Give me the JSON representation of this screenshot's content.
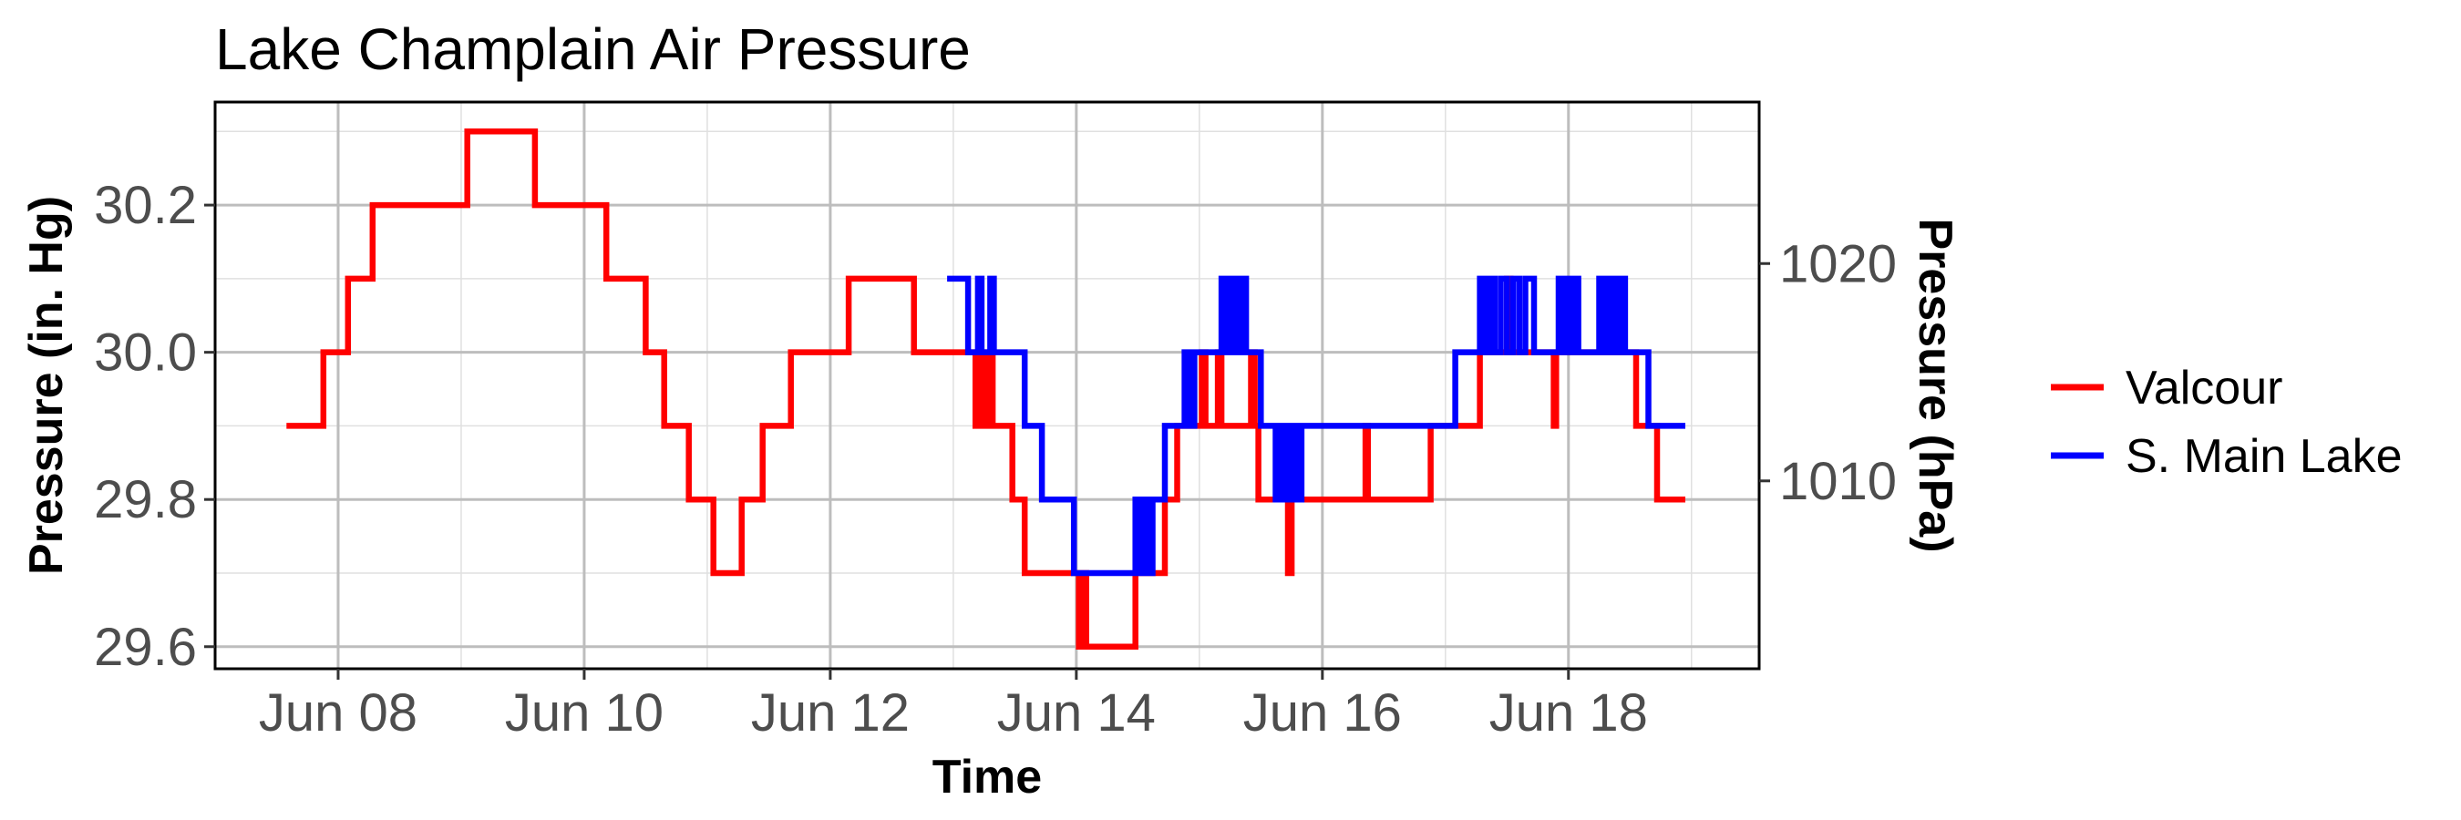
{
  "chart_data": {
    "type": "line",
    "title": "Lake Champlain Air Pressure",
    "xlabel": "Time",
    "ylabel": "Pressure (in. Hg)",
    "ylabel_secondary": "Pressure (hPa)",
    "x_ticks": [
      {
        "value": "Jun 08",
        "day": 8
      },
      {
        "value": "Jun 10",
        "day": 10
      },
      {
        "value": "Jun 12",
        "day": 12
      },
      {
        "value": "Jun 14",
        "day": 14
      },
      {
        "value": "Jun 16",
        "day": 16
      },
      {
        "value": "Jun 18",
        "day": 18
      }
    ],
    "xlim": [
      7.0,
      19.55
    ],
    "ylim": [
      29.57,
      30.34
    ],
    "y_ticks": [
      29.6,
      29.8,
      30.0,
      30.2
    ],
    "y_tick_labels": [
      "29.6",
      "29.8",
      "30.0",
      "30.2"
    ],
    "y2_ticks": [
      1010,
      1020
    ],
    "y2_tick_labels": [
      "1010",
      "1020"
    ],
    "grid": true,
    "legend_position": "right",
    "series": [
      {
        "name": "Valcour",
        "color": "#FF0000",
        "points": [
          [
            7.58,
            29.9
          ],
          [
            7.88,
            29.9
          ],
          [
            7.88,
            30.0
          ],
          [
            8.08,
            30.0
          ],
          [
            8.08,
            30.1
          ],
          [
            8.28,
            30.1
          ],
          [
            8.28,
            30.2
          ],
          [
            9.05,
            30.2
          ],
          [
            9.05,
            30.3
          ],
          [
            9.6,
            30.3
          ],
          [
            9.6,
            30.2
          ],
          [
            10.18,
            30.2
          ],
          [
            10.18,
            30.1
          ],
          [
            10.5,
            30.1
          ],
          [
            10.5,
            30.0
          ],
          [
            10.65,
            30.0
          ],
          [
            10.65,
            29.9
          ],
          [
            10.85,
            29.9
          ],
          [
            10.85,
            29.8
          ],
          [
            11.05,
            29.8
          ],
          [
            11.05,
            29.7
          ],
          [
            11.28,
            29.7
          ],
          [
            11.28,
            29.8
          ],
          [
            11.45,
            29.8
          ],
          [
            11.45,
            29.9
          ],
          [
            11.68,
            29.9
          ],
          [
            11.68,
            30.0
          ],
          [
            12.15,
            30.0
          ],
          [
            12.15,
            30.1
          ],
          [
            12.68,
            30.1
          ],
          [
            12.68,
            30.0
          ],
          [
            13.18,
            30.0
          ],
          [
            13.18,
            29.9
          ],
          [
            13.22,
            29.9
          ],
          [
            13.22,
            30.0
          ],
          [
            13.25,
            30.0
          ],
          [
            13.25,
            29.9
          ],
          [
            13.28,
            29.9
          ],
          [
            13.28,
            30.0
          ],
          [
            13.32,
            30.0
          ],
          [
            13.32,
            29.9
          ],
          [
            13.48,
            29.9
          ],
          [
            13.48,
            29.8
          ],
          [
            13.58,
            29.8
          ],
          [
            13.58,
            29.7
          ],
          [
            14.02,
            29.7
          ],
          [
            14.02,
            29.6
          ],
          [
            14.05,
            29.6
          ],
          [
            14.05,
            29.7
          ],
          [
            14.08,
            29.7
          ],
          [
            14.08,
            29.6
          ],
          [
            14.48,
            29.6
          ],
          [
            14.48,
            29.7
          ],
          [
            14.52,
            29.7
          ],
          [
            14.52,
            29.8
          ],
          [
            14.55,
            29.8
          ],
          [
            14.55,
            29.7
          ],
          [
            14.72,
            29.7
          ],
          [
            14.72,
            29.8
          ],
          [
            14.82,
            29.8
          ],
          [
            14.82,
            29.9
          ],
          [
            15.02,
            29.9
          ],
          [
            15.02,
            30.0
          ],
          [
            15.05,
            30.0
          ],
          [
            15.05,
            29.9
          ],
          [
            15.15,
            29.9
          ],
          [
            15.15,
            30.0
          ],
          [
            15.18,
            30.0
          ],
          [
            15.18,
            29.9
          ],
          [
            15.42,
            29.9
          ],
          [
            15.42,
            30.0
          ],
          [
            15.45,
            30.0
          ],
          [
            15.45,
            29.9
          ],
          [
            15.48,
            29.9
          ],
          [
            15.48,
            29.8
          ],
          [
            15.72,
            29.8
          ],
          [
            15.72,
            29.7
          ],
          [
            15.75,
            29.7
          ],
          [
            15.75,
            29.8
          ],
          [
            16.35,
            29.8
          ],
          [
            16.35,
            29.9
          ],
          [
            16.37,
            29.9
          ],
          [
            16.37,
            29.8
          ],
          [
            16.88,
            29.8
          ],
          [
            16.88,
            29.9
          ],
          [
            17.28,
            29.9
          ],
          [
            17.28,
            30.0
          ],
          [
            17.5,
            30.0
          ],
          [
            17.5,
            30.1
          ],
          [
            17.53,
            30.1
          ],
          [
            17.53,
            30.0
          ],
          [
            17.88,
            30.0
          ],
          [
            17.88,
            29.9
          ],
          [
            17.9,
            29.9
          ],
          [
            17.9,
            30.0
          ],
          [
            18.55,
            30.0
          ],
          [
            18.55,
            29.9
          ],
          [
            18.72,
            29.9
          ],
          [
            18.72,
            29.8
          ],
          [
            18.95,
            29.8
          ]
        ]
      },
      {
        "name": "S. Main Lake",
        "color": "#0000FF",
        "points": [
          [
            12.95,
            30.1
          ],
          [
            13.12,
            30.1
          ],
          [
            13.12,
            30.0
          ],
          [
            13.2,
            30.0
          ],
          [
            13.2,
            30.1
          ],
          [
            13.23,
            30.1
          ],
          [
            13.23,
            30.0
          ],
          [
            13.3,
            30.0
          ],
          [
            13.3,
            30.1
          ],
          [
            13.33,
            30.1
          ],
          [
            13.33,
            30.0
          ],
          [
            13.58,
            30.0
          ],
          [
            13.58,
            29.9
          ],
          [
            13.72,
            29.9
          ],
          [
            13.72,
            29.8
          ],
          [
            13.98,
            29.8
          ],
          [
            13.98,
            29.7
          ],
          [
            14.48,
            29.7
          ],
          [
            14.48,
            29.8
          ],
          [
            14.52,
            29.8
          ],
          [
            14.52,
            29.7
          ],
          [
            14.55,
            29.7
          ],
          [
            14.55,
            29.8
          ],
          [
            14.58,
            29.8
          ],
          [
            14.58,
            29.7
          ],
          [
            14.62,
            29.7
          ],
          [
            14.62,
            29.8
          ],
          [
            14.72,
            29.8
          ],
          [
            14.72,
            29.9
          ],
          [
            14.88,
            29.9
          ],
          [
            14.88,
            30.0
          ],
          [
            14.92,
            30.0
          ],
          [
            14.92,
            29.9
          ],
          [
            14.96,
            29.9
          ],
          [
            14.96,
            30.0
          ],
          [
            15.18,
            30.0
          ],
          [
            15.18,
            30.1
          ],
          [
            15.22,
            30.1
          ],
          [
            15.22,
            30.0
          ],
          [
            15.26,
            30.0
          ],
          [
            15.26,
            30.1
          ],
          [
            15.3,
            30.1
          ],
          [
            15.3,
            30.0
          ],
          [
            15.34,
            30.0
          ],
          [
            15.34,
            30.1
          ],
          [
            15.38,
            30.1
          ],
          [
            15.38,
            30.0
          ],
          [
            15.5,
            30.0
          ],
          [
            15.5,
            29.9
          ],
          [
            15.62,
            29.9
          ],
          [
            15.62,
            29.8
          ],
          [
            15.65,
            29.8
          ],
          [
            15.65,
            29.9
          ],
          [
            15.68,
            29.9
          ],
          [
            15.68,
            29.8
          ],
          [
            15.71,
            29.8
          ],
          [
            15.71,
            29.9
          ],
          [
            15.74,
            29.9
          ],
          [
            15.74,
            29.8
          ],
          [
            15.77,
            29.8
          ],
          [
            15.77,
            29.9
          ],
          [
            15.8,
            29.9
          ],
          [
            15.8,
            29.8
          ],
          [
            15.83,
            29.8
          ],
          [
            15.83,
            29.9
          ],
          [
            17.08,
            29.9
          ],
          [
            17.08,
            30.0
          ],
          [
            17.28,
            30.0
          ],
          [
            17.28,
            30.1
          ],
          [
            17.32,
            30.1
          ],
          [
            17.32,
            30.0
          ],
          [
            17.36,
            30.0
          ],
          [
            17.36,
            30.1
          ],
          [
            17.4,
            30.1
          ],
          [
            17.4,
            30.0
          ],
          [
            17.45,
            30.0
          ],
          [
            17.45,
            30.1
          ],
          [
            17.5,
            30.1
          ],
          [
            17.5,
            30.0
          ],
          [
            17.55,
            30.0
          ],
          [
            17.55,
            30.1
          ],
          [
            17.6,
            30.1
          ],
          [
            17.6,
            30.0
          ],
          [
            17.65,
            30.0
          ],
          [
            17.65,
            30.1
          ],
          [
            17.72,
            30.1
          ],
          [
            17.72,
            30.0
          ],
          [
            17.92,
            30.0
          ],
          [
            17.92,
            30.1
          ],
          [
            17.95,
            30.1
          ],
          [
            17.95,
            30.0
          ],
          [
            17.98,
            30.0
          ],
          [
            17.98,
            30.1
          ],
          [
            18.02,
            30.1
          ],
          [
            18.02,
            30.0
          ],
          [
            18.05,
            30.0
          ],
          [
            18.05,
            30.1
          ],
          [
            18.08,
            30.1
          ],
          [
            18.08,
            30.0
          ],
          [
            18.25,
            30.0
          ],
          [
            18.25,
            30.1
          ],
          [
            18.28,
            30.1
          ],
          [
            18.28,
            30.0
          ],
          [
            18.31,
            30.0
          ],
          [
            18.31,
            30.1
          ],
          [
            18.34,
            30.1
          ],
          [
            18.34,
            30.0
          ],
          [
            18.37,
            30.0
          ],
          [
            18.37,
            30.1
          ],
          [
            18.4,
            30.1
          ],
          [
            18.4,
            30.0
          ],
          [
            18.43,
            30.0
          ],
          [
            18.43,
            30.1
          ],
          [
            18.46,
            30.1
          ],
          [
            18.46,
            30.0
          ],
          [
            18.65,
            30.0
          ],
          [
            18.65,
            29.9
          ],
          [
            18.95,
            29.9
          ]
        ]
      }
    ]
  }
}
